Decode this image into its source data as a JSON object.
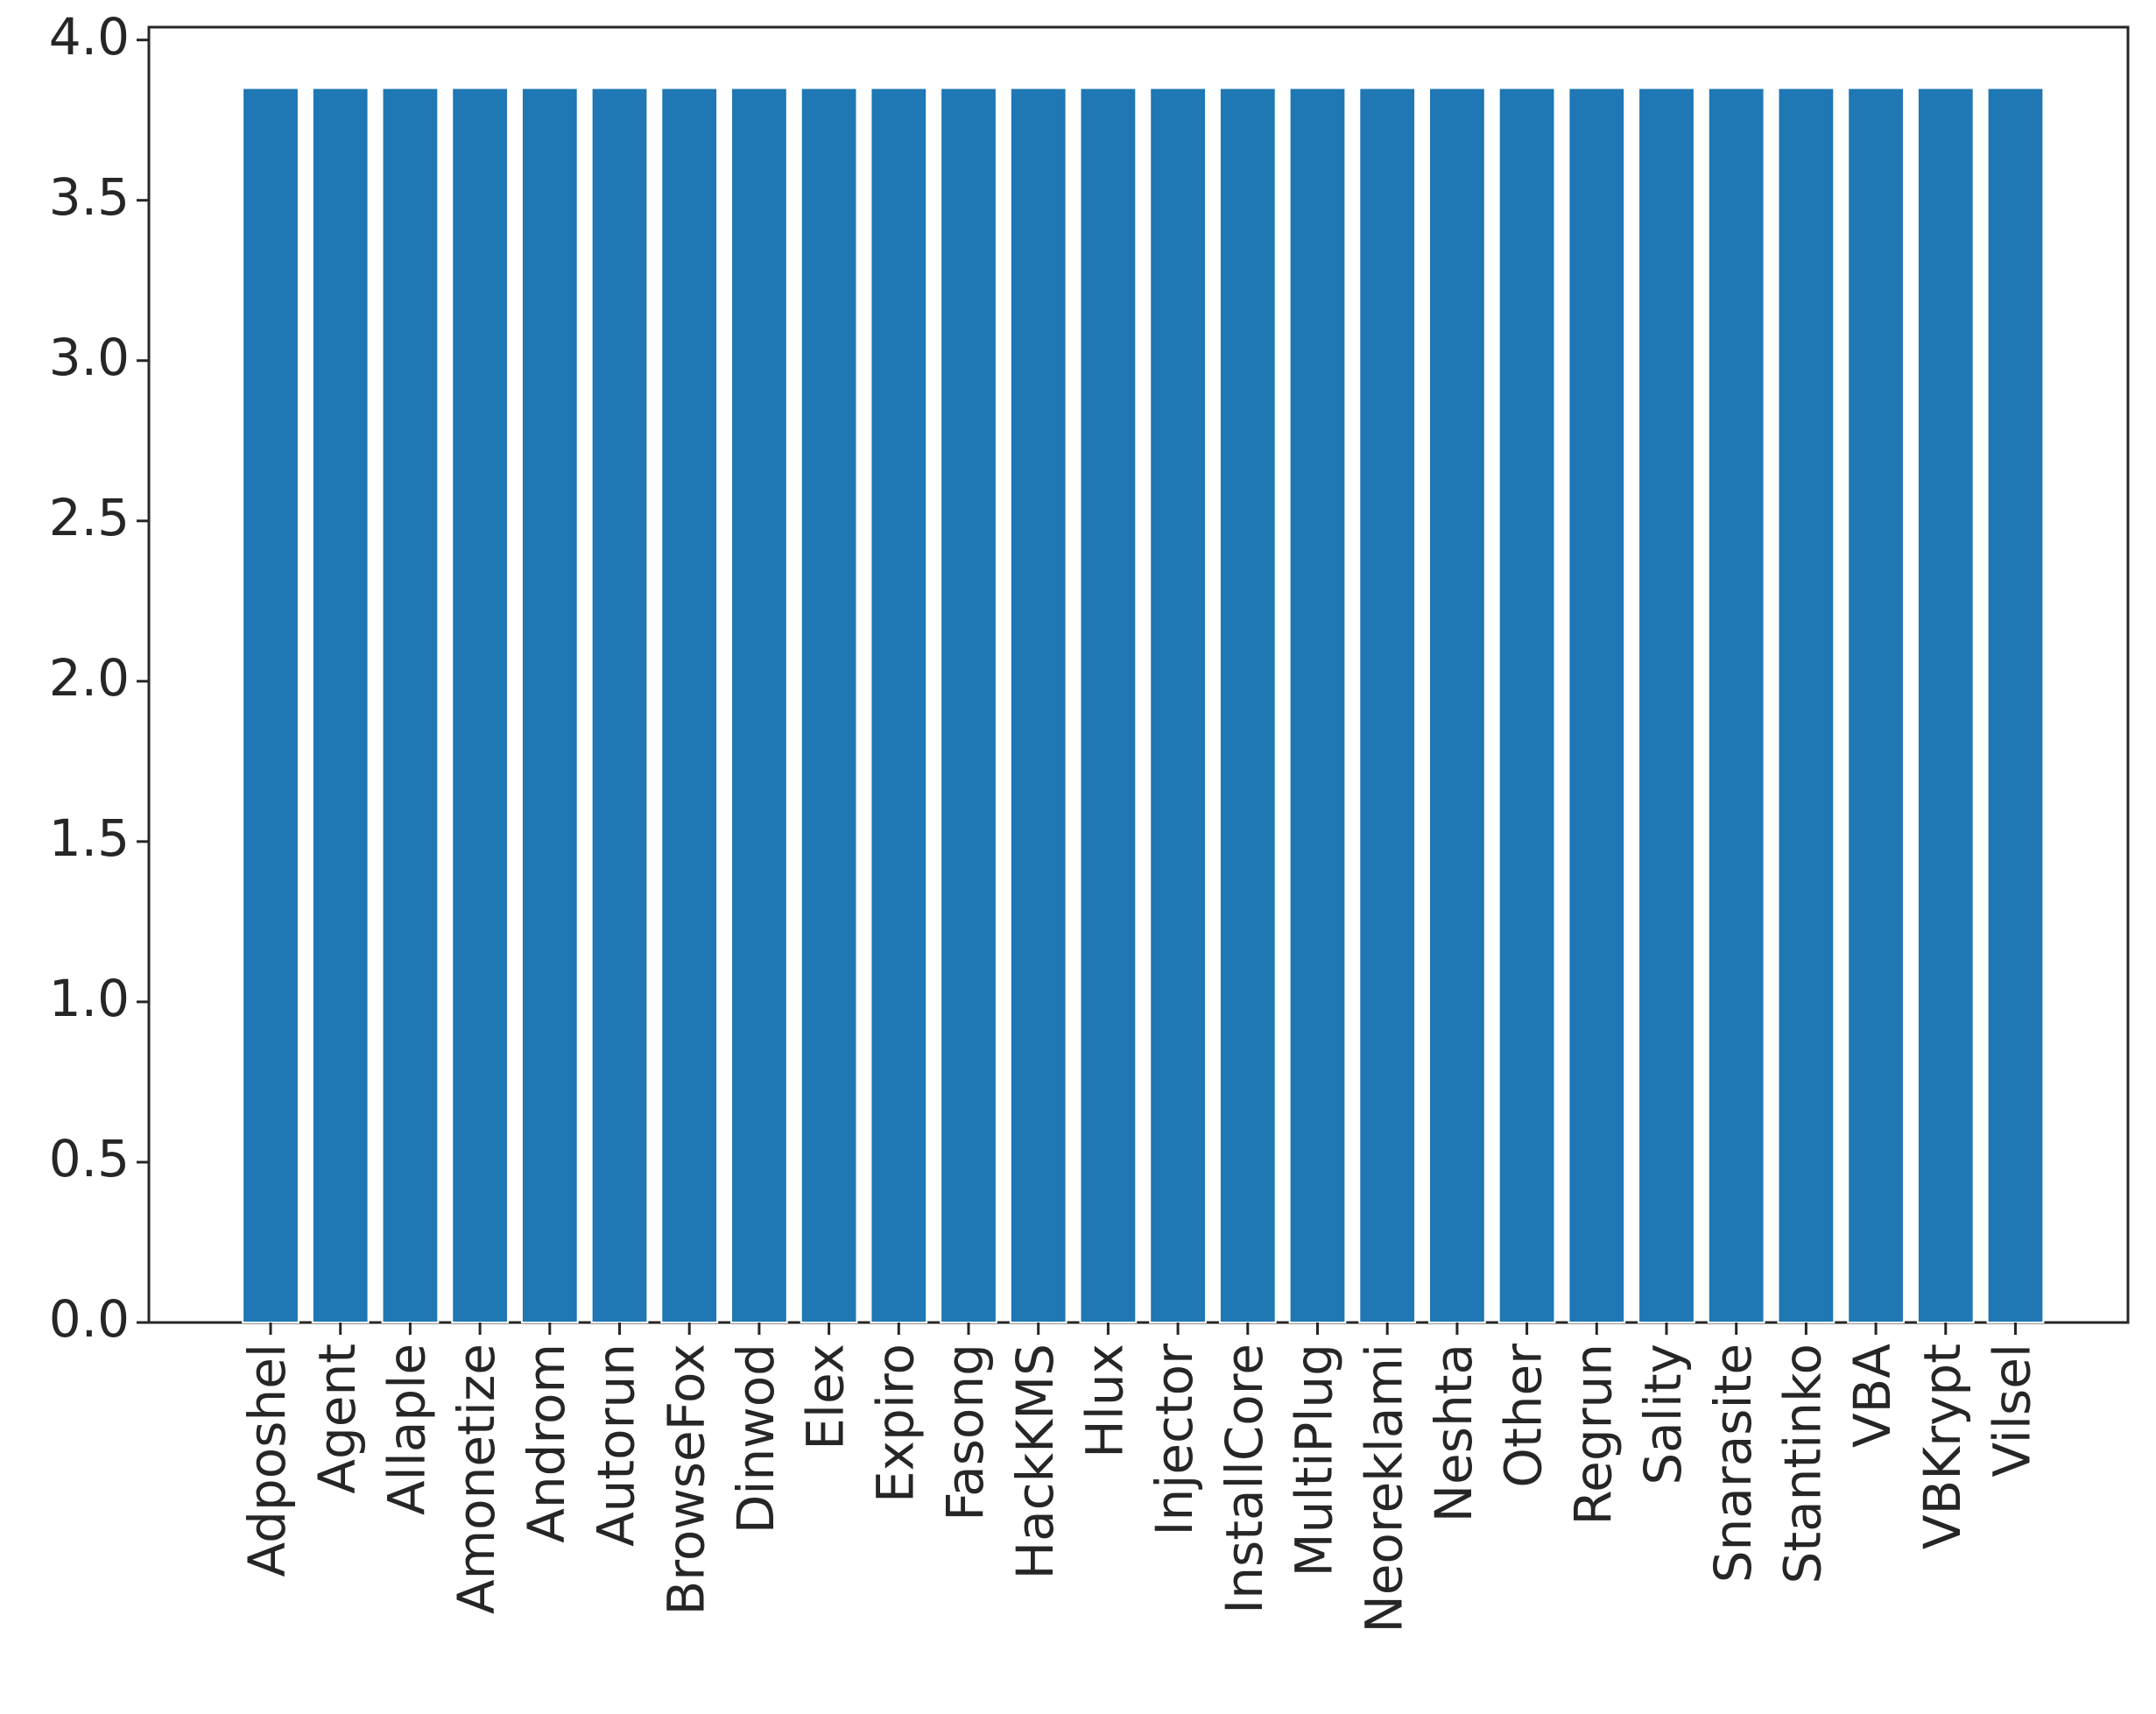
{
  "chart_data": {
    "type": "bar",
    "categories": [
      "Adposhel",
      "Agent",
      "Allaple",
      "Amonetize",
      "Androm",
      "Autorun",
      "BrowseFox",
      "Dinwod",
      "Elex",
      "Expiro",
      "Fasong",
      "HackKMS",
      "Hlux",
      "Injector",
      "InstallCore",
      "MultiPlug",
      "Neoreklami",
      "Neshta",
      "Other",
      "Regrun",
      "Sality",
      "Snarasite",
      "Stantinko",
      "VBA",
      "VBKrypt",
      "Vilsel"
    ],
    "values": [
      3.85,
      3.85,
      3.85,
      3.85,
      3.85,
      3.85,
      3.85,
      3.85,
      3.85,
      3.85,
      3.85,
      3.85,
      3.85,
      3.85,
      3.85,
      3.85,
      3.85,
      3.85,
      3.85,
      3.85,
      3.85,
      3.85,
      3.85,
      3.85,
      3.85,
      3.85
    ],
    "color": "#1f77b4",
    "ylim": [
      0,
      4.04
    ],
    "yticks": [
      {
        "value": 0,
        "label": "0.0"
      },
      0.5,
      {
        "value": 1,
        "label": "1.0"
      },
      1.5,
      {
        "value": 2,
        "label": "2.0"
      },
      2.5,
      {
        "value": 3,
        "label": "3.0"
      },
      3.5,
      {
        "value": 4,
        "label": "4.0"
      }
    ],
    "grid": false
  }
}
